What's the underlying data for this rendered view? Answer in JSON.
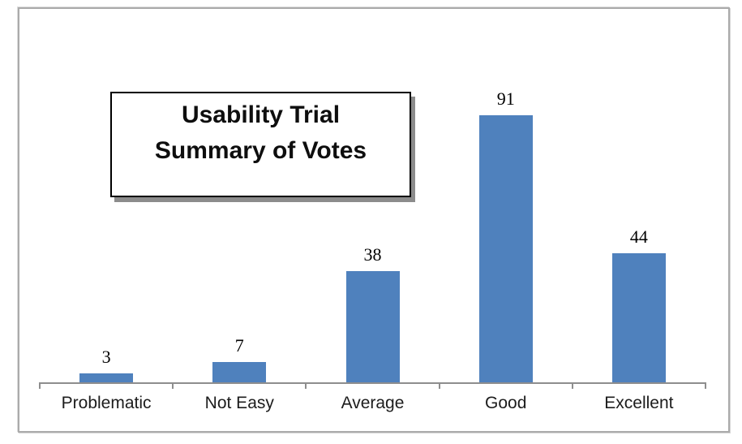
{
  "chart_data": {
    "type": "bar",
    "title": "Usability Trial Summary of Votes",
    "title_lines": [
      "Usability Trial",
      "Summary of Votes"
    ],
    "categories": [
      "Problematic",
      "Not Easy",
      "Average",
      "Good",
      "Excellent"
    ],
    "values": [
      3,
      7,
      38,
      91,
      44
    ],
    "xlabel": "",
    "ylabel": "",
    "ylim": [
      0,
      100
    ],
    "grid": false,
    "legend": null,
    "data_labels_shown": true,
    "bar_color": "#4F81BD",
    "axis_color": "#8e8e8e",
    "label_color": "#1c1c1c",
    "value_label_color": "#000000",
    "title_border_color": "#000000",
    "title_shadow_color": "#8c8c8c"
  }
}
